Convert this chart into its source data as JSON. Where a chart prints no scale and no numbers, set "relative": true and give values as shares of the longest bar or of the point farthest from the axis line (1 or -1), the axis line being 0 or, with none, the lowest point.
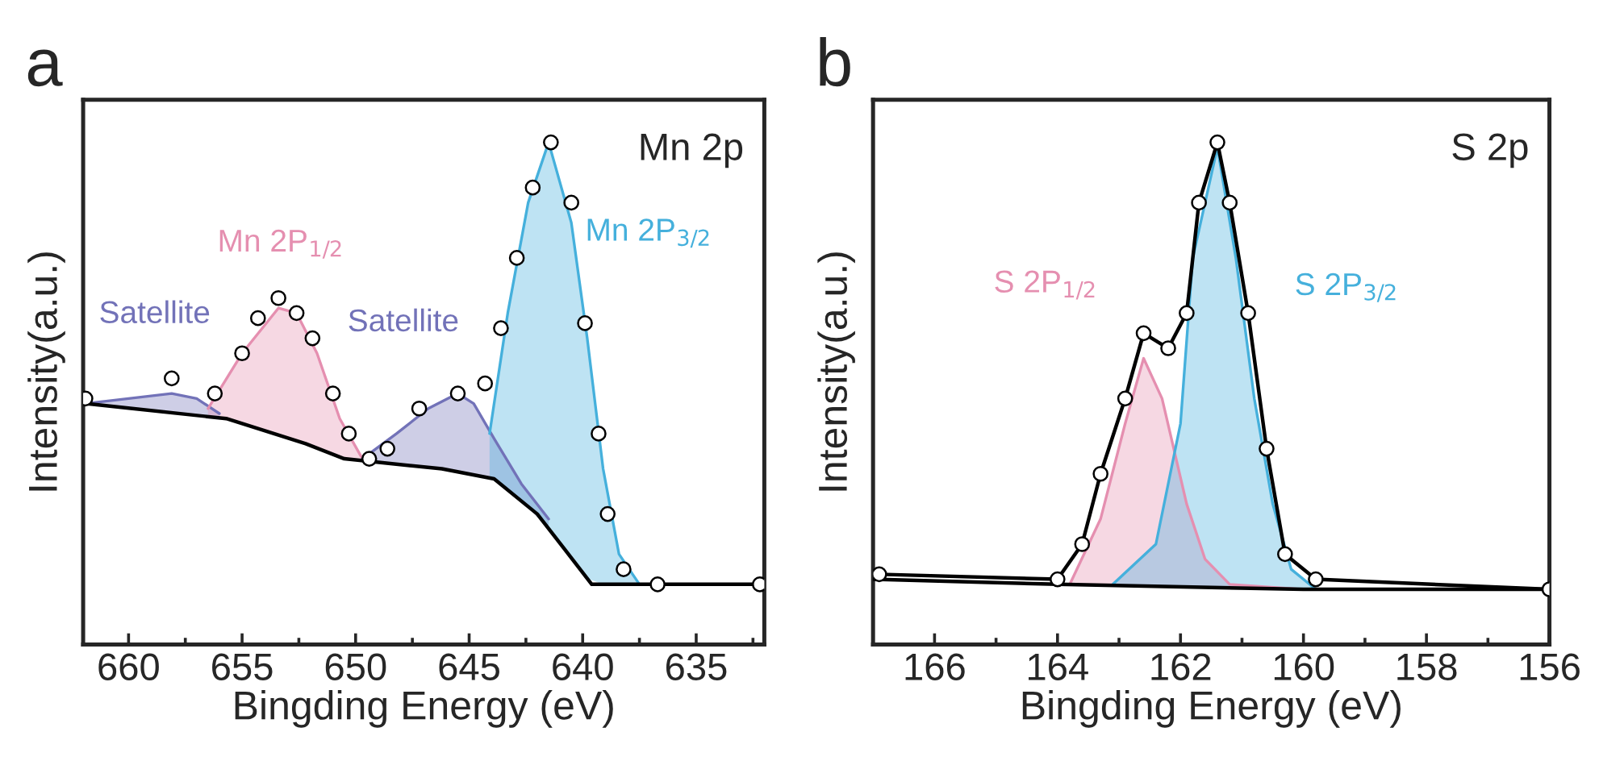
{
  "chart_data": [
    {
      "type": "area",
      "relative": true,
      "xlabel": "Bingding Energy (eV)",
      "ylabel": "Intensity(a.u.)",
      "xlim": [
        662,
        632
      ],
      "xticks": [
        660,
        655,
        650,
        645,
        640,
        635
      ],
      "tick_labels": "x",
      "annotations": [
        "a",
        "Mn 2p",
        "Satellite",
        "Mn 2P$_{1/2}$",
        "Satellite",
        "Mn 2P$_{3/2}$"
      ],
      "series": [
        {
          "type": "line",
          "color": "#000000",
          "x": [
            661.9,
            655.7,
            652.2,
            650.5,
            646.2,
            643.9,
            642,
            640.8,
            639.6,
            638.2,
            632.2
          ],
          "values": [
            0.48,
            0.45,
            0.4,
            0.37,
            0.35,
            0.33,
            0.26,
            0.19,
            0.12,
            0.12,
            0.12
          ]
        },
        {
          "color": "#7272b8",
          "x": [
            661.9,
            660,
            658.1,
            657,
            656
          ],
          "values": [
            0.48,
            0.49,
            0.5,
            0.49,
            0.46
          ]
        },
        {
          "color": "#e58fb0",
          "x": [
            656.5,
            655,
            653.4,
            652.6,
            651.7,
            650.7,
            649.7
          ],
          "values": [
            0.47,
            0.58,
            0.67,
            0.66,
            0.58,
            0.45,
            0.37
          ]
        },
        {
          "color": "#7272b8",
          "x": [
            649.7,
            648.2,
            646.8,
            645.5,
            644.8,
            643.9,
            642.7,
            641.5
          ],
          "values": [
            0.37,
            0.42,
            0.47,
            0.5,
            0.48,
            0.41,
            0.32,
            0.25
          ]
        },
        {
          "color": "#45b0dc",
          "x": [
            644.1,
            643.3,
            642.4,
            641.5,
            640.5,
            639.8,
            639.1,
            638.4,
            637.5,
            636.7
          ],
          "values": [
            0.42,
            0.66,
            0.88,
            1.0,
            0.84,
            0.61,
            0.35,
            0.18,
            0.12,
            0.12
          ]
        },
        {
          "type": "scatter",
          "color": "#000000",
          "x": [
            661.9,
            658.1,
            656.2,
            655,
            654.3,
            653.4,
            652.6,
            651.9,
            651,
            650.3,
            649.4,
            648.6,
            647.2,
            645.5,
            644.3,
            643.6,
            642.9,
            642.2,
            641.4,
            640.5,
            639.9,
            639.3,
            638.9,
            638.2,
            636.7,
            632.2
          ],
          "values": [
            0.49,
            0.53,
            0.5,
            0.58,
            0.65,
            0.69,
            0.66,
            0.61,
            0.5,
            0.42,
            0.37,
            0.39,
            0.47,
            0.5,
            0.52,
            0.63,
            0.77,
            0.91,
            1.0,
            0.88,
            0.64,
            0.42,
            0.26,
            0.15,
            0.12,
            0.12
          ]
        }
      ]
    },
    {
      "type": "area",
      "relative": true,
      "xlabel": "Bingding Energy (eV)",
      "ylabel": "Intensity(a.u.)",
      "xlim": [
        167,
        156
      ],
      "xticks": [
        166,
        164,
        162,
        160,
        158,
        156
      ],
      "tick_labels": "x",
      "annotations": [
        "b",
        "S 2p",
        "S 2P$_{1/2}$",
        "S 2P$_{3/2}$"
      ],
      "series": [
        {
          "type": "line",
          "color": "#000000",
          "x": [
            167,
            164,
            160,
            156
          ],
          "values": [
            0.13,
            0.12,
            0.11,
            0.11
          ]
        },
        {
          "color": "#e58fb0",
          "x": [
            163.8,
            163.3,
            162.9,
            162.6,
            162.3,
            161.9,
            161.6,
            161.2,
            160
          ],
          "values": [
            0.12,
            0.25,
            0.44,
            0.57,
            0.49,
            0.28,
            0.17,
            0.12,
            0.11
          ]
        },
        {
          "color": "#45b0dc",
          "x": [
            163.1,
            162.4,
            162,
            161.8,
            161.4,
            161.1,
            160.8,
            160.5,
            160.2,
            159.8
          ],
          "values": [
            0.12,
            0.2,
            0.44,
            0.77,
            0.99,
            0.77,
            0.49,
            0.28,
            0.15,
            0.11
          ]
        },
        {
          "type": "scatter",
          "color": "#000000",
          "x": [
            166.9,
            164,
            163.6,
            163.3,
            162.9,
            162.6,
            162.2,
            161.9,
            161.7,
            161.4,
            161.2,
            160.9,
            160.6,
            160.3,
            159.8,
            156
          ],
          "values": [
            0.14,
            0.13,
            0.2,
            0.34,
            0.49,
            0.62,
            0.59,
            0.66,
            0.88,
            1.0,
            0.88,
            0.66,
            0.39,
            0.18,
            0.13,
            0.11
          ]
        },
        {
          "type": "line",
          "color": "#000000",
          "x": [
            166.9,
            164,
            163.6,
            163.3,
            162.9,
            162.6,
            162.2,
            161.9,
            161.7,
            161.4,
            161.2,
            160.9,
            160.6,
            160.3,
            159.8,
            156
          ],
          "values": [
            0.14,
            0.13,
            0.2,
            0.34,
            0.49,
            0.62,
            0.59,
            0.66,
            0.88,
            1.0,
            0.88,
            0.66,
            0.39,
            0.18,
            0.13,
            0.11
          ]
        }
      ]
    }
  ]
}
